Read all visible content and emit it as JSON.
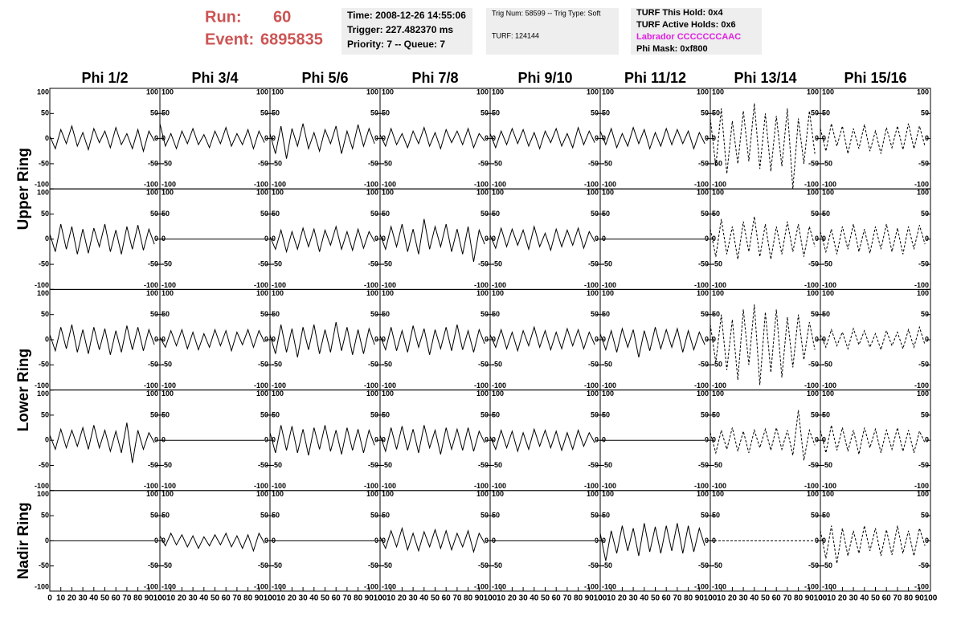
{
  "header": {
    "run_label": "Run:",
    "run": "60",
    "event_label": "Event:",
    "event": "6895835",
    "time": "Time: 2008-12-26 14:55:06",
    "trigger": "Trigger: 227.482370 ms",
    "priority": "Priority: 7 -- Queue: 7",
    "trig_num": "Trig Num: 58599 -- Trig Type: Soft",
    "turf": "TURF: 124144",
    "turf_hold": "TURF This Hold: 0x4",
    "turf_active": "TURF Active Holds: 0x6",
    "labrador": "Labrador CCCCCCCAAC",
    "phi_mask": "Phi Mask: 0xf800"
  },
  "chart_data": {
    "type": "line",
    "columns": [
      "Phi 1/2",
      "Phi 3/4",
      "Phi 5/6",
      "Phi 7/8",
      "Phi 9/10",
      "Phi 11/12",
      "Phi 13/14",
      "Phi 15/16"
    ],
    "rows": [
      "Upper Ring",
      "Lower Ring",
      "Nadir Ring"
    ],
    "xlim": [
      0,
      100
    ],
    "xticks": [
      0,
      10,
      20,
      30,
      40,
      50,
      60,
      70,
      80,
      90,
      100
    ],
    "ylim": [
      -100,
      100
    ],
    "yticks": [
      -100,
      -50,
      0,
      50,
      100
    ],
    "color": "#000000",
    "x": [
      0,
      5,
      10,
      15,
      20,
      25,
      30,
      35,
      40,
      45,
      50,
      55,
      60,
      65,
      70,
      75,
      80,
      85,
      90,
      95
    ],
    "panels": [
      [
        {
          "values": [
            5,
            -20,
            18,
            -10,
            25,
            -15,
            12,
            -22,
            20,
            -8,
            15,
            -18,
            22,
            -12,
            10,
            -20,
            18,
            -25,
            15,
            -5
          ]
        },
        {
          "values": [
            30,
            -15,
            10,
            -20,
            15,
            -10,
            20,
            -12,
            8,
            -18,
            15,
            -10,
            22,
            -15,
            10,
            -12,
            18,
            -20,
            15,
            -8
          ]
        },
        {
          "values": [
            10,
            -30,
            25,
            -40,
            20,
            -15,
            30,
            -20,
            12,
            -25,
            18,
            -10,
            25,
            -30,
            15,
            -20,
            28,
            -15,
            20,
            -10
          ]
        },
        {
          "values": [
            8,
            -15,
            20,
            -12,
            10,
            -18,
            15,
            -10,
            22,
            -15,
            12,
            -20,
            18,
            -8,
            15,
            -12,
            20,
            -18,
            10,
            -5
          ]
        },
        {
          "values": [
            10,
            -18,
            15,
            -12,
            20,
            -10,
            18,
            -15,
            12,
            -20,
            15,
            -8,
            20,
            -15,
            10,
            -18,
            22,
            -12,
            15,
            -8
          ]
        },
        {
          "values": [
            15,
            -12,
            20,
            -18,
            10,
            -15,
            22,
            -10,
            18,
            -20,
            12,
            -15,
            20,
            -12,
            18,
            -10,
            15,
            -20,
            12,
            -10
          ]
        },
        {
          "values": [
            40,
            -55,
            60,
            -70,
            35,
            -50,
            55,
            -45,
            70,
            -60,
            50,
            -65,
            45,
            -55,
            60,
            -100,
            40,
            -50,
            55,
            -30
          ],
          "dashed": true
        },
        {
          "values": [
            20,
            -25,
            30,
            -15,
            25,
            -30,
            20,
            -20,
            28,
            -25,
            15,
            -30,
            22,
            -18,
            25,
            -22,
            30,
            -20,
            25,
            -15
          ],
          "dashed": true
        }
      ],
      [
        {
          "values": [
            10,
            -25,
            30,
            -20,
            25,
            -30,
            20,
            -28,
            22,
            -15,
            30,
            -25,
            18,
            -30,
            25,
            -20,
            28,
            -22,
            20,
            -10
          ]
        },
        {
          "values": [
            0,
            0,
            0,
            0,
            0,
            0,
            0,
            0,
            0,
            0,
            0,
            0,
            0,
            0,
            0,
            0,
            0,
            0,
            0,
            0
          ]
        },
        {
          "values": [
            5,
            -20,
            18,
            -25,
            15,
            -20,
            22,
            -15,
            20,
            -25,
            18,
            -12,
            25,
            -20,
            15,
            -22,
            20,
            -18,
            15,
            -5
          ]
        },
        {
          "values": [
            10,
            -20,
            25,
            -15,
            30,
            -25,
            20,
            -30,
            40,
            -20,
            25,
            -15,
            30,
            -25,
            20,
            -30,
            25,
            -45,
            18,
            -10
          ]
        },
        {
          "values": [
            8,
            -18,
            22,
            -15,
            20,
            -12,
            18,
            -20,
            25,
            -15,
            12,
            -22,
            20,
            -15,
            18,
            -12,
            22,
            -18,
            15,
            -5
          ]
        },
        {
          "values": [
            0,
            0,
            0,
            0,
            0,
            0,
            0,
            0,
            0,
            0,
            0,
            0,
            0,
            0,
            0,
            0,
            0,
            0,
            0,
            0
          ]
        },
        {
          "values": [
            20,
            -35,
            40,
            -30,
            25,
            -40,
            35,
            -25,
            45,
            -35,
            30,
            -40,
            25,
            -30,
            35,
            -25,
            30,
            -35,
            25,
            -15
          ],
          "dashed": true
        },
        {
          "values": [
            15,
            -25,
            20,
            -30,
            25,
            -20,
            30,
            -25,
            20,
            -28,
            25,
            -20,
            30,
            -25,
            22,
            -30,
            25,
            -20,
            28,
            -10
          ],
          "dashed": true
        }
      ],
      [
        {
          "values": [
            10,
            -22,
            25,
            -18,
            30,
            -25,
            20,
            -28,
            25,
            -20,
            22,
            -30,
            18,
            -25,
            28,
            -20,
            25,
            -22,
            20,
            -10
          ]
        },
        {
          "values": [
            5,
            -15,
            18,
            -12,
            20,
            -18,
            15,
            -20,
            12,
            -15,
            20,
            -12,
            18,
            -22,
            15,
            -10,
            20,
            -15,
            18,
            -5
          ]
        },
        {
          "values": [
            10,
            -28,
            30,
            -25,
            22,
            -35,
            25,
            -20,
            30,
            -28,
            20,
            -25,
            35,
            -22,
            25,
            -30,
            20,
            -28,
            22,
            -10
          ]
        },
        {
          "values": [
            8,
            -20,
            25,
            -22,
            18,
            -25,
            28,
            -15,
            22,
            -30,
            20,
            -18,
            25,
            -22,
            30,
            -20,
            18,
            -25,
            20,
            -8
          ]
        },
        {
          "values": [
            10,
            -15,
            20,
            -18,
            15,
            -22,
            18,
            -12,
            25,
            -15,
            18,
            -20,
            15,
            -18,
            22,
            -12,
            20,
            -18,
            15,
            -10
          ]
        },
        {
          "values": [
            12,
            -20,
            18,
            -25,
            22,
            -15,
            20,
            -35,
            18,
            -22,
            25,
            -18,
            20,
            -15,
            22,
            -25,
            18,
            -20,
            15,
            -10
          ]
        },
        {
          "values": [
            30,
            -45,
            50,
            -60,
            40,
            -80,
            60,
            -50,
            70,
            -90,
            55,
            -65,
            60,
            -75,
            45,
            -55,
            50,
            -40,
            35,
            -20
          ],
          "dashed": true
        },
        {
          "values": [
            10,
            -15,
            20,
            -12,
            15,
            -18,
            22,
            -10,
            18,
            -15,
            12,
            -20,
            18,
            -12,
            15,
            -18,
            20,
            -15,
            25,
            -10
          ],
          "dashed": true
        }
      ],
      [
        {
          "values": [
            10,
            -18,
            22,
            -15,
            20,
            -12,
            25,
            -18,
            30,
            -15,
            20,
            -22,
            18,
            -25,
            35,
            -45,
            20,
            -18,
            15,
            -5
          ]
        },
        {
          "values": [
            0,
            0,
            0,
            0,
            0,
            0,
            0,
            0,
            0,
            0,
            0,
            0,
            0,
            0,
            0,
            0,
            0,
            0,
            0,
            0
          ]
        },
        {
          "values": [
            15,
            -25,
            30,
            -20,
            28,
            -25,
            22,
            -30,
            25,
            -18,
            30,
            -22,
            20,
            -28,
            25,
            -20,
            22,
            -25,
            20,
            -10
          ]
        },
        {
          "values": [
            10,
            -22,
            25,
            -18,
            28,
            -20,
            22,
            -25,
            30,
            -15,
            20,
            -28,
            25,
            -18,
            22,
            -20,
            25,
            -22,
            18,
            -5
          ]
        },
        {
          "values": [
            8,
            -18,
            20,
            -15,
            18,
            -22,
            15,
            -18,
            22,
            -12,
            20,
            -15,
            18,
            -20,
            15,
            -18,
            20,
            -12,
            15,
            -5
          ]
        },
        {
          "values": [
            0,
            0,
            0,
            0,
            0,
            0,
            0,
            0,
            0,
            0,
            0,
            0,
            0,
            0,
            0,
            0,
            0,
            0,
            0,
            0
          ]
        },
        {
          "values": [
            15,
            -25,
            20,
            -18,
            25,
            -22,
            18,
            -25,
            20,
            -15,
            22,
            -20,
            25,
            -18,
            20,
            -30,
            60,
            -40,
            20,
            -10
          ],
          "dashed": true
        },
        {
          "values": [
            20,
            -25,
            30,
            -20,
            25,
            -22,
            20,
            -28,
            25,
            -15,
            22,
            -25,
            20,
            -18,
            25,
            -22,
            20,
            -25,
            18,
            -5
          ],
          "dashed": true
        }
      ],
      [
        {
          "values": [
            0,
            0,
            0,
            0,
            0,
            0,
            0,
            0,
            0,
            0,
            0,
            0,
            0,
            0,
            0,
            0,
            0,
            0,
            0,
            0
          ]
        },
        {
          "values": [
            10,
            -10,
            15,
            -8,
            12,
            -12,
            10,
            -15,
            8,
            -10,
            12,
            -8,
            15,
            -12,
            10,
            -15,
            12,
            -20,
            15,
            -5
          ]
        },
        {
          "values": [
            0,
            0,
            0,
            0,
            0,
            0,
            0,
            0,
            0,
            0,
            0,
            0,
            0,
            0,
            0,
            0,
            0,
            0,
            0,
            0
          ]
        },
        {
          "values": [
            8,
            -15,
            20,
            -12,
            25,
            -18,
            15,
            -20,
            18,
            -12,
            22,
            -15,
            20,
            -18,
            15,
            -12,
            20,
            -22,
            15,
            -5
          ]
        },
        {
          "values": [
            0,
            0,
            0,
            0,
            0,
            0,
            0,
            0,
            0,
            0,
            0,
            0,
            0,
            0,
            0,
            0,
            0,
            0,
            0,
            0
          ]
        },
        {
          "values": [
            15,
            -40,
            20,
            -25,
            30,
            -20,
            25,
            -30,
            35,
            -22,
            28,
            -25,
            30,
            -20,
            35,
            -25,
            30,
            -22,
            25,
            -10
          ]
        },
        {
          "values": [
            0,
            0,
            0,
            0,
            0,
            0,
            0,
            0,
            0,
            0,
            0,
            0,
            0,
            0,
            0,
            0,
            0,
            0,
            0,
            0
          ],
          "dashed": true
        },
        {
          "values": [
            20,
            -35,
            30,
            -45,
            25,
            -30,
            20,
            -25,
            30,
            -20,
            25,
            -30,
            22,
            -28,
            30,
            -25,
            20,
            -30,
            25,
            -10
          ],
          "dashed": true
        }
      ]
    ]
  }
}
